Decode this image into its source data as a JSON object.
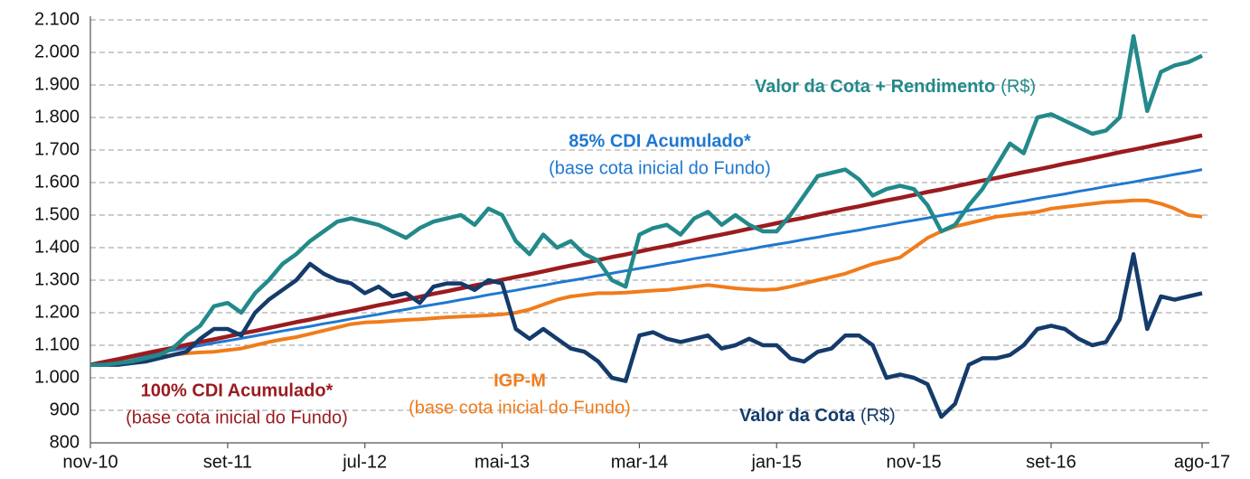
{
  "chart_data": {
    "type": "line",
    "categories": [
      "nov-10",
      null,
      null,
      null,
      null,
      null,
      null,
      null,
      null,
      null,
      "set-11",
      null,
      null,
      null,
      null,
      null,
      null,
      null,
      null,
      null,
      "jul-12",
      null,
      null,
      null,
      null,
      null,
      null,
      null,
      null,
      null,
      "mai-13",
      null,
      null,
      null,
      null,
      null,
      null,
      null,
      null,
      null,
      "mar-14",
      null,
      null,
      null,
      null,
      null,
      null,
      null,
      null,
      null,
      "jan-15",
      null,
      null,
      null,
      null,
      null,
      null,
      null,
      null,
      null,
      "nov-15",
      null,
      null,
      null,
      null,
      null,
      null,
      null,
      null,
      null,
      "set-16",
      null,
      null,
      null,
      null,
      null,
      null,
      null,
      null,
      null,
      null,
      "ago-17"
    ],
    "ylim": [
      800,
      2100
    ],
    "yticks": [
      800,
      900,
      {
        "value": 1000,
        "label": "1.000"
      },
      {
        "value": 1100,
        "label": "1.100"
      },
      {
        "value": 1200,
        "label": "1.200"
      },
      {
        "value": 1300,
        "label": "1.300"
      },
      {
        "value": 1400,
        "label": "1.400"
      },
      {
        "value": 1500,
        "label": "1.500"
      },
      {
        "value": 1600,
        "label": "1.600"
      },
      {
        "value": 1700,
        "label": "1.700"
      },
      {
        "value": 1800,
        "label": "1.800"
      },
      {
        "value": 1900,
        "label": "1.900"
      },
      {
        "value": 2000,
        "label": "2.000"
      },
      {
        "value": 2100,
        "label": "2.100"
      }
    ],
    "grid": true,
    "series": [
      {
        "name": "IGP-M",
        "note": "(base cota inicial do Fundo)",
        "color": "#f07c1b",
        "values": [
          1040,
          1045,
          1050,
          1055,
          1060,
          1065,
          1070,
          1075,
          1078,
          1080,
          1085,
          1090,
          1100,
          1110,
          1118,
          1125,
          1135,
          1145,
          1155,
          1165,
          1170,
          1172,
          1175,
          1178,
          1180,
          1183,
          1186,
          1188,
          1190,
          1192,
          1195,
          1200,
          1210,
          1225,
          1240,
          1250,
          1255,
          1260,
          1260,
          1262,
          1265,
          1268,
          1270,
          1275,
          1280,
          1285,
          1280,
          1275,
          1272,
          1270,
          1272,
          1280,
          1290,
          1300,
          1310,
          1320,
          1335,
          1350,
          1360,
          1370,
          1400,
          1430,
          1450,
          1465,
          1475,
          1485,
          1495,
          1500,
          1505,
          1510,
          1520,
          1525,
          1530,
          1535,
          1540,
          1542,
          1545,
          1545,
          1535,
          1520,
          1500,
          1495
        ]
      },
      {
        "name": "85% CDI Acumulado*",
        "note": "(base cota inicial do Fundo)",
        "color": "#1f78d1",
        "values": [
          1040,
          1047,
          1055,
          1062,
          1070,
          1077,
          1084,
          1092,
          1099,
          1107,
          1114,
          1121,
          1129,
          1136,
          1144,
          1151,
          1158,
          1166,
          1173,
          1181,
          1188,
          1195,
          1203,
          1210,
          1218,
          1225,
          1232,
          1240,
          1247,
          1255,
          1262,
          1269,
          1277,
          1284,
          1292,
          1299,
          1306,
          1314,
          1321,
          1329,
          1336,
          1343,
          1351,
          1358,
          1366,
          1373,
          1380,
          1388,
          1395,
          1403,
          1410,
          1417,
          1425,
          1432,
          1440,
          1447,
          1454,
          1462,
          1469,
          1477,
          1484,
          1491,
          1499,
          1506,
          1514,
          1521,
          1528,
          1536,
          1543,
          1551,
          1558,
          1565,
          1573,
          1580,
          1588,
          1595,
          1602,
          1610,
          1617,
          1625,
          1632,
          1640
        ]
      },
      {
        "name": "100% CDI Acumulado*",
        "note": "(base cota inicial do Fundo)",
        "color": "#9b1b1f",
        "values": [
          1040,
          1049,
          1057,
          1066,
          1075,
          1084,
          1092,
          1101,
          1110,
          1118,
          1127,
          1136,
          1144,
          1153,
          1162,
          1171,
          1179,
          1188,
          1197,
          1205,
          1214,
          1223,
          1231,
          1240,
          1249,
          1258,
          1266,
          1275,
          1284,
          1292,
          1301,
          1310,
          1318,
          1327,
          1336,
          1345,
          1353,
          1362,
          1371,
          1379,
          1388,
          1397,
          1405,
          1414,
          1423,
          1432,
          1440,
          1449,
          1458,
          1466,
          1475,
          1484,
          1492,
          1501,
          1510,
          1519,
          1527,
          1536,
          1545,
          1553,
          1562,
          1571,
          1579,
          1588,
          1597,
          1606,
          1614,
          1623,
          1632,
          1640,
          1649,
          1658,
          1666,
          1675,
          1684,
          1693,
          1701,
          1710,
          1719,
          1727,
          1736,
          1745
        ]
      },
      {
        "name": "Valor da Cota",
        "note": "(R$)",
        "color": "#143b6b",
        "values": [
          1040,
          1040,
          1040,
          1045,
          1050,
          1060,
          1070,
          1080,
          1120,
          1150,
          1150,
          1130,
          1200,
          1240,
          1270,
          1300,
          1350,
          1320,
          1300,
          1290,
          1260,
          1280,
          1250,
          1260,
          1230,
          1280,
          1290,
          1290,
          1270,
          1300,
          1290,
          1150,
          1120,
          1150,
          1120,
          1090,
          1080,
          1050,
          1000,
          990,
          1130,
          1140,
          1120,
          1110,
          1120,
          1130,
          1090,
          1100,
          1120,
          1100,
          1100,
          1060,
          1050,
          1080,
          1090,
          1130,
          1130,
          1100,
          1000,
          1010,
          1000,
          980,
          880,
          920,
          1040,
          1060,
          1060,
          1070,
          1100,
          1150,
          1160,
          1150,
          1120,
          1100,
          1110,
          1180,
          1380,
          1150,
          1250,
          1240,
          1250,
          1260
        ]
      },
      {
        "name": "Valor da Cota + Rendimento",
        "note": "(R$)",
        "color": "#23898a",
        "values": [
          1040,
          1040,
          1045,
          1050,
          1060,
          1070,
          1090,
          1130,
          1160,
          1220,
          1230,
          1200,
          1260,
          1300,
          1350,
          1380,
          1420,
          1450,
          1480,
          1490,
          1480,
          1470,
          1450,
          1430,
          1460,
          1480,
          1490,
          1500,
          1470,
          1520,
          1500,
          1420,
          1380,
          1440,
          1400,
          1420,
          1380,
          1360,
          1300,
          1280,
          1440,
          1460,
          1470,
          1440,
          1490,
          1510,
          1470,
          1500,
          1470,
          1450,
          1450,
          1500,
          1560,
          1620,
          1630,
          1640,
          1610,
          1560,
          1580,
          1590,
          1580,
          1530,
          1450,
          1470,
          1530,
          1580,
          1650,
          1720,
          1690,
          1800,
          1810,
          1790,
          1770,
          1750,
          1760,
          1800,
          2050,
          1820,
          1940,
          1960,
          1970,
          1990
        ]
      }
    ]
  }
}
